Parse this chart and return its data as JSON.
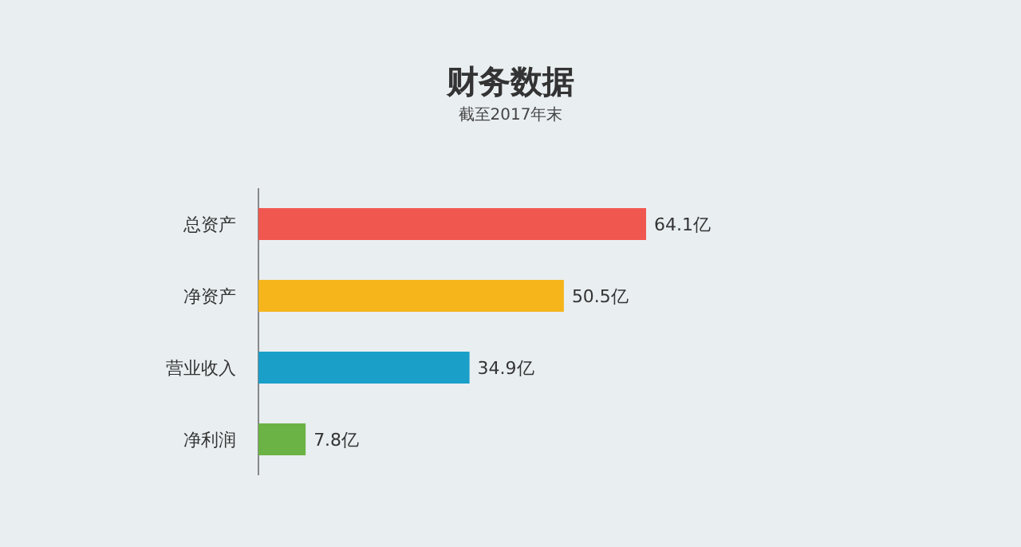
{
  "chart_data": {
    "type": "bar",
    "orientation": "horizontal",
    "title": "财务数据",
    "subtitle": "截至2017年末",
    "categories": [
      "总资产",
      "净资产",
      "营业收入",
      "净利润"
    ],
    "values": [
      64.1,
      50.5,
      34.9,
      7.8
    ],
    "colors": [
      "#f0584f",
      "#f5b51b",
      "#1a9fc9",
      "#6ab344"
    ],
    "value_labels": [
      "64.1亿",
      "50.5亿",
      "34.9亿",
      "7.8亿"
    ]
  }
}
